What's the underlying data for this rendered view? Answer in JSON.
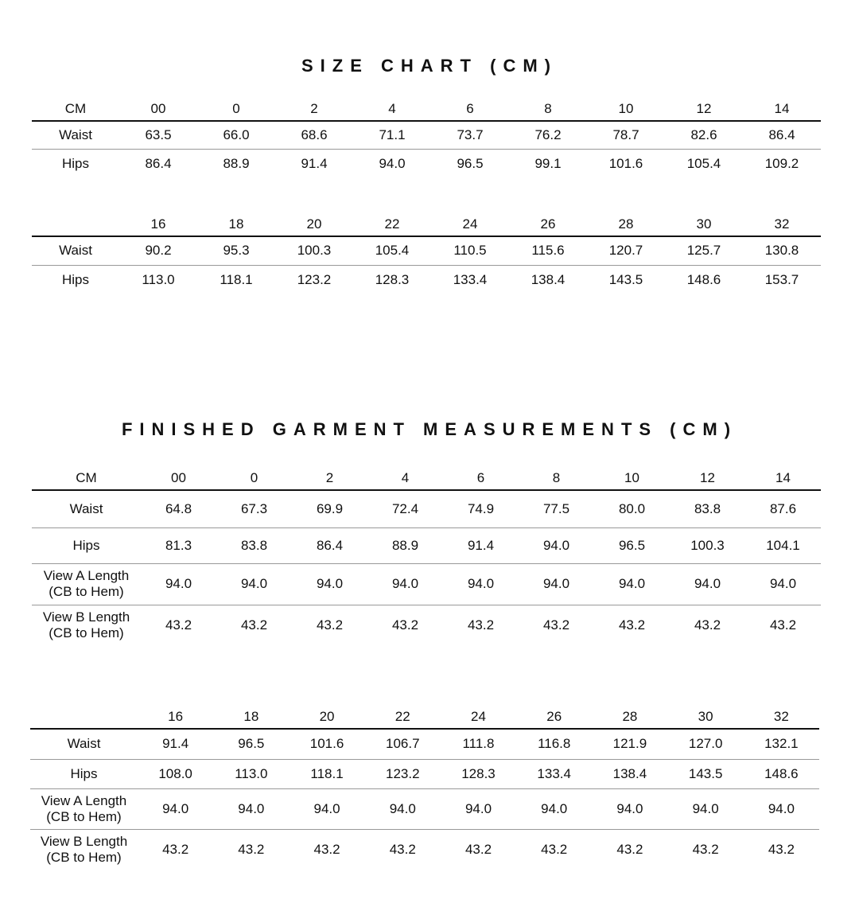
{
  "size_chart": {
    "title": "SIZE CHART (CM)",
    "tables": [
      {
        "header_label": "CM",
        "sizes": [
          "00",
          "0",
          "2",
          "4",
          "6",
          "8",
          "10",
          "12",
          "14"
        ],
        "rows": [
          {
            "label": "Waist",
            "values": [
              "63.5",
              "66.0",
              "68.6",
              "71.1",
              "73.7",
              "76.2",
              "78.7",
              "82.6",
              "86.4"
            ]
          },
          {
            "label": "Hips",
            "values": [
              "86.4",
              "88.9",
              "91.4",
              "94.0",
              "96.5",
              "99.1",
              "101.6",
              "105.4",
              "109.2"
            ]
          }
        ]
      },
      {
        "header_label": "",
        "sizes": [
          "16",
          "18",
          "20",
          "22",
          "24",
          "26",
          "28",
          "30",
          "32"
        ],
        "rows": [
          {
            "label": "Waist",
            "values": [
              "90.2",
              "95.3",
              "100.3",
              "105.4",
              "110.5",
              "115.6",
              "120.7",
              "125.7",
              "130.8"
            ]
          },
          {
            "label": "Hips",
            "values": [
              "113.0",
              "118.1",
              "123.2",
              "128.3",
              "133.4",
              "138.4",
              "143.5",
              "148.6",
              "153.7"
            ]
          }
        ]
      }
    ]
  },
  "finished_garment": {
    "title": "FINISHED GARMENT MEASUREMENTS (CM)",
    "tables": [
      {
        "header_label": "CM",
        "sizes": [
          "00",
          "0",
          "2",
          "4",
          "6",
          "8",
          "10",
          "12",
          "14"
        ],
        "rows": [
          {
            "label": "Waist",
            "values": [
              "64.8",
              "67.3",
              "69.9",
              "72.4",
              "74.9",
              "77.5",
              "80.0",
              "83.8",
              "87.6"
            ]
          },
          {
            "label": "Hips",
            "values": [
              "81.3",
              "83.8",
              "86.4",
              "88.9",
              "91.4",
              "94.0",
              "96.5",
              "100.3",
              "104.1"
            ]
          },
          {
            "label": "View A Length",
            "sublabel": "(CB to Hem)",
            "values": [
              "94.0",
              "94.0",
              "94.0",
              "94.0",
              "94.0",
              "94.0",
              "94.0",
              "94.0",
              "94.0"
            ]
          },
          {
            "label": "View B Length",
            "sublabel": "(CB to Hem)",
            "values": [
              "43.2",
              "43.2",
              "43.2",
              "43.2",
              "43.2",
              "43.2",
              "43.2",
              "43.2",
              "43.2"
            ]
          }
        ]
      },
      {
        "header_label": "",
        "sizes": [
          "16",
          "18",
          "20",
          "22",
          "24",
          "26",
          "28",
          "30",
          "32"
        ],
        "rows": [
          {
            "label": "Waist",
            "values": [
              "91.4",
              "96.5",
              "101.6",
              "106.7",
              "111.8",
              "116.8",
              "121.9",
              "127.0",
              "132.1"
            ]
          },
          {
            "label": "Hips",
            "values": [
              "108.0",
              "113.0",
              "118.1",
              "123.2",
              "128.3",
              "133.4",
              "138.4",
              "143.5",
              "148.6"
            ]
          },
          {
            "label": "View A Length",
            "sublabel": "(CB to Hem)",
            "values": [
              "94.0",
              "94.0",
              "94.0",
              "94.0",
              "94.0",
              "94.0",
              "94.0",
              "94.0",
              "94.0"
            ]
          },
          {
            "label": "View B Length",
            "sublabel": "(CB to Hem)",
            "values": [
              "43.2",
              "43.2",
              "43.2",
              "43.2",
              "43.2",
              "43.2",
              "43.2",
              "43.2",
              "43.2"
            ]
          }
        ]
      }
    ]
  }
}
